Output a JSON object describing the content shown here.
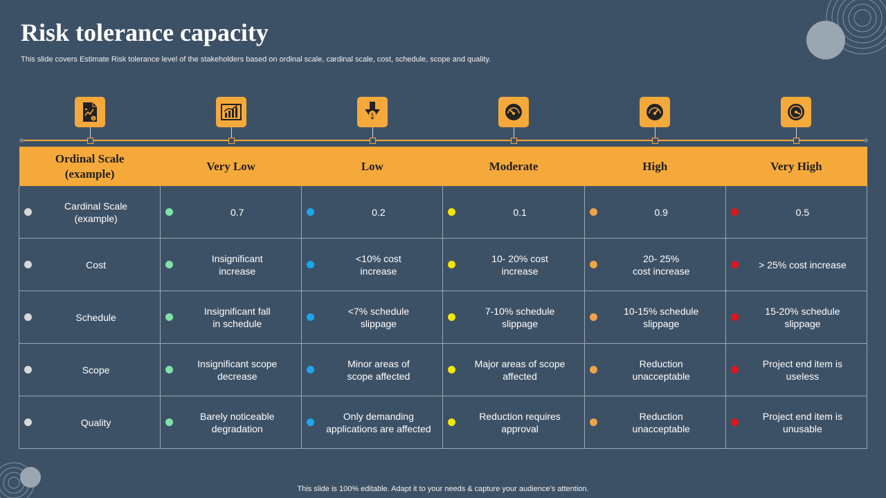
{
  "header": {
    "title": "Risk tolerance capacity",
    "subtitle": "This slide covers Estimate Risk tolerance level of the stakeholders based on ordinal scale, cardinal scale, cost, schedule, scope and quality."
  },
  "icons": [
    {
      "name": "finance-report-icon"
    },
    {
      "name": "growth-chart-icon"
    },
    {
      "name": "cost-down-icon"
    },
    {
      "name": "speedometer-low-icon"
    },
    {
      "name": "speedometer-medium-icon"
    },
    {
      "name": "speedometer-high-icon"
    }
  ],
  "accent_color": "#f6a93b",
  "table": {
    "headers": [
      "Ordinal Scale\n(example)",
      "Very Low",
      "Low",
      "Moderate",
      "High",
      "Very High"
    ],
    "dot_colors": [
      "#d9d9d9",
      "#7fe3a8",
      "#1aa7ec",
      "#f2e600",
      "#f0a545",
      "#e0161b"
    ],
    "rows": [
      [
        "Cardinal Scale\n(example)",
        "0.7",
        "0.2",
        "0.1",
        "0.9",
        "0.5"
      ],
      [
        "Cost",
        "Insignificant\nincrease",
        "<10% cost\nincrease",
        "10- 20% cost\nincrease",
        "20- 25%\ncost increase",
        "> 25% cost increase"
      ],
      [
        "Schedule",
        "Insignificant fall\nin schedule",
        "<7% schedule\nslippage",
        "7-10% schedule\nslippage",
        "10-15% schedule\nslippage",
        "15-20% schedule\nslippage"
      ],
      [
        "Scope",
        "Insignificant scope\ndecrease",
        "Minor areas of\nscope affected",
        "Major areas of scope\naffected",
        "Reduction\nunacceptable",
        "Project end item is\nuseless"
      ],
      [
        "Quality",
        "Barely noticeable\ndegradation",
        "Only demanding\napplications are affected",
        "Reduction requires\napproval",
        "Reduction\nunacceptable",
        "Project end item is\nunusable"
      ]
    ]
  },
  "footer": {
    "text": "This slide is 100% editable. Adapt it to your needs & capture your audience’s attention."
  }
}
